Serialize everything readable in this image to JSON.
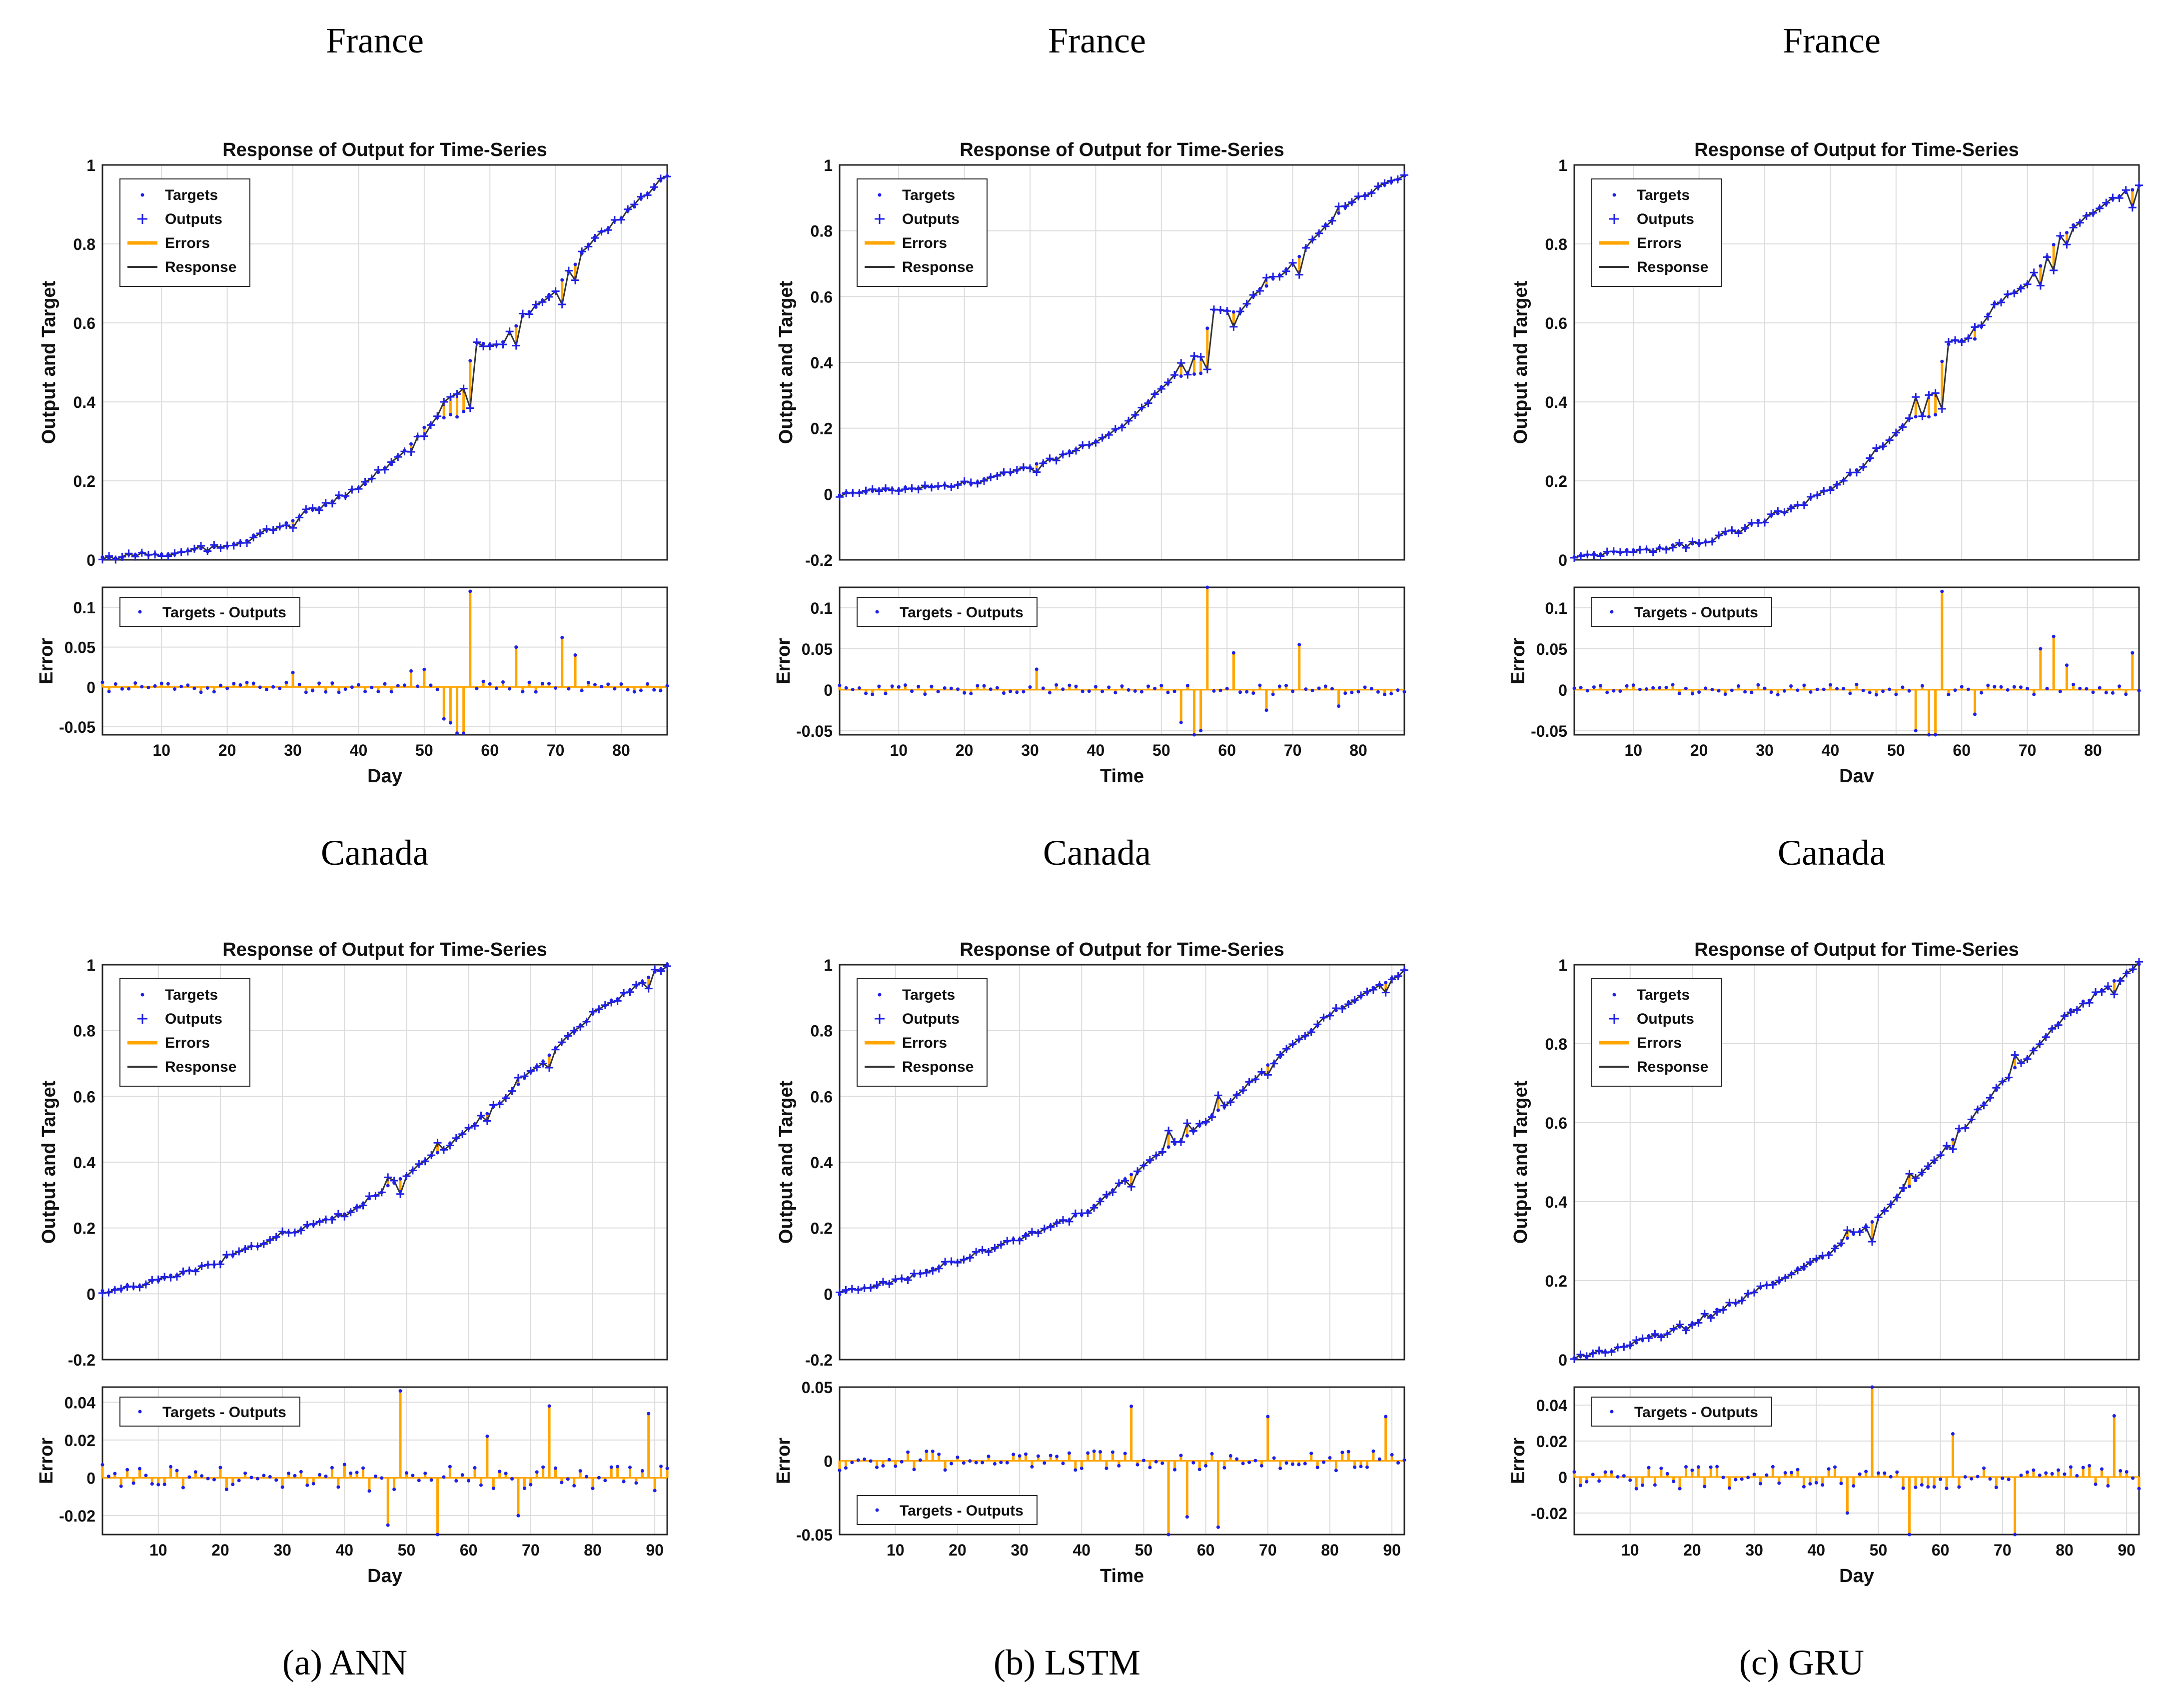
{
  "colors": {
    "axis": "#262626",
    "grid": "#dcdcdc",
    "targets": "#1f1fe6",
    "outputs": "#1f1fe6",
    "errors": "#ffa500",
    "response": "#333333"
  },
  "rows": [
    {
      "country": "France"
    },
    {
      "country": "Canada"
    }
  ],
  "captions": [
    "(a) ANN",
    "(b) LSTM",
    "(c) GRU"
  ],
  "chart_data": [
    {
      "id": "france-ann",
      "type": "line",
      "title": "Response of Output for Time-Series",
      "ylabel": "Output and Target",
      "err_ylabel": "Error",
      "xlabel": "Day",
      "n": 87,
      "xlim": [
        1,
        87
      ],
      "ylim": [
        0,
        1
      ],
      "yticks": [
        "0",
        "0.2",
        "0.4",
        "0.6",
        "0.8",
        "1"
      ],
      "ytick_vals": [
        0,
        0.2,
        0.4,
        0.6,
        0.8,
        1
      ],
      "err_ylim": [
        -0.06,
        0.125
      ],
      "err_ytick_vals": [
        -0.05,
        0,
        0.05,
        0.1
      ],
      "err_yticks": [
        "-0.05",
        "0",
        "0.05",
        "0.1"
      ],
      "xtick_vals": [
        10,
        20,
        30,
        40,
        50,
        60,
        70,
        80
      ],
      "xticks": [
        "10",
        "20",
        "30",
        "40",
        "50",
        "60",
        "70",
        "80"
      ],
      "legend": [
        "Targets",
        "Outputs",
        "Errors",
        "Response"
      ],
      "err_legend": [
        "Targets - Outputs"
      ],
      "err_legend_pos": "top-left",
      "anchors": [
        [
          1,
          0.005
        ],
        [
          20,
          0.03
        ],
        [
          30,
          0.1
        ],
        [
          40,
          0.18
        ],
        [
          45,
          0.24
        ],
        [
          50,
          0.33
        ],
        [
          52,
          0.36
        ],
        [
          56,
          0.37
        ],
        [
          57,
          0.5
        ],
        [
          58,
          0.55
        ],
        [
          62,
          0.55
        ],
        [
          65,
          0.62
        ],
        [
          70,
          0.68
        ],
        [
          75,
          0.8
        ],
        [
          80,
          0.87
        ],
        [
          87,
          0.97
        ]
      ],
      "spikes": [
        [
          53,
          -0.04
        ],
        [
          54,
          -0.045
        ],
        [
          55,
          -0.058
        ],
        [
          56,
          -0.058
        ],
        [
          57,
          0.12
        ],
        [
          64,
          0.05
        ],
        [
          71,
          0.062
        ],
        [
          73,
          0.04
        ],
        [
          30,
          0.018
        ],
        [
          48,
          0.02
        ],
        [
          50,
          0.022
        ]
      ],
      "seed": 11,
      "noise": 0.012
    },
    {
      "id": "france-lstm",
      "type": "line",
      "title": "Response of Output for Time-Series",
      "ylabel": "Output and Target",
      "err_ylabel": "Error",
      "xlabel": "Time",
      "n": 87,
      "xlim": [
        1,
        87
      ],
      "ylim": [
        -0.2,
        1
      ],
      "yticks": [
        "-0.2",
        "0",
        "0.2",
        "0.4",
        "0.6",
        "0.8",
        "1"
      ],
      "ytick_vals": [
        -0.2,
        0,
        0.2,
        0.4,
        0.6,
        0.8,
        1
      ],
      "err_ylim": [
        -0.055,
        0.125
      ],
      "err_ytick_vals": [
        -0.05,
        0,
        0.05,
        0.1
      ],
      "err_yticks": [
        "-0.05",
        "0",
        "0.05",
        "0.1"
      ],
      "xtick_vals": [
        10,
        20,
        30,
        40,
        50,
        60,
        70,
        80
      ],
      "xticks": [
        "10",
        "20",
        "30",
        "40",
        "50",
        "60",
        "70",
        "80"
      ],
      "legend": [
        "Targets",
        "Outputs",
        "Errors",
        "Response"
      ],
      "err_legend": [
        "Targets - Outputs"
      ],
      "err_legend_pos": "top-left",
      "anchors": [
        [
          1,
          0.0
        ],
        [
          20,
          0.03
        ],
        [
          30,
          0.08
        ],
        [
          40,
          0.16
        ],
        [
          45,
          0.22
        ],
        [
          50,
          0.32
        ],
        [
          52,
          0.36
        ],
        [
          56,
          0.37
        ],
        [
          57,
          0.5
        ],
        [
          58,
          0.56
        ],
        [
          62,
          0.55
        ],
        [
          65,
          0.62
        ],
        [
          70,
          0.7
        ],
        [
          75,
          0.82
        ],
        [
          80,
          0.9
        ],
        [
          87,
          0.97
        ]
      ],
      "spikes": [
        [
          53,
          -0.04
        ],
        [
          55,
          -0.055
        ],
        [
          56,
          -0.05
        ],
        [
          57,
          0.125
        ],
        [
          61,
          0.045
        ],
        [
          71,
          0.055
        ],
        [
          66,
          -0.025
        ],
        [
          77,
          -0.02
        ],
        [
          31,
          0.025
        ]
      ],
      "seed": 23,
      "noise": 0.01
    },
    {
      "id": "france-gru",
      "type": "line",
      "title": "Response of Output for Time-Series",
      "ylabel": "Output and Target",
      "err_ylabel": "Error",
      "xlabel": "Dav",
      "n": 87,
      "xlim": [
        1,
        87
      ],
      "ylim": [
        0,
        1
      ],
      "yticks": [
        "0",
        "0.2",
        "0.4",
        "0.6",
        "0.8",
        "1"
      ],
      "ytick_vals": [
        0,
        0.2,
        0.4,
        0.6,
        0.8,
        1
      ],
      "err_ylim": [
        -0.055,
        0.125
      ],
      "err_ytick_vals": [
        -0.05,
        0,
        0.05,
        0.1
      ],
      "err_yticks": [
        "-0.05",
        "0",
        "0.05",
        "0.1"
      ],
      "xtick_vals": [
        10,
        20,
        30,
        40,
        50,
        60,
        70,
        80
      ],
      "xticks": [
        "10",
        "20",
        "30",
        "40",
        "50",
        "60",
        "70",
        "80"
      ],
      "legend": [
        "Targets",
        "Outputs",
        "Errors",
        "Response"
      ],
      "err_legend": [
        "Targets - Outputs"
      ],
      "err_legend_pos": "top-left",
      "anchors": [
        [
          1,
          0.005
        ],
        [
          20,
          0.04
        ],
        [
          30,
          0.1
        ],
        [
          40,
          0.18
        ],
        [
          45,
          0.24
        ],
        [
          50,
          0.32
        ],
        [
          52,
          0.36
        ],
        [
          56,
          0.37
        ],
        [
          57,
          0.5
        ],
        [
          58,
          0.55
        ],
        [
          62,
          0.56
        ],
        [
          65,
          0.65
        ],
        [
          70,
          0.7
        ],
        [
          75,
          0.82
        ],
        [
          80,
          0.88
        ],
        [
          87,
          0.95
        ]
      ],
      "spikes": [
        [
          53,
          -0.05
        ],
        [
          55,
          -0.055
        ],
        [
          56,
          -0.055
        ],
        [
          57,
          0.12
        ],
        [
          72,
          0.05
        ],
        [
          74,
          0.065
        ],
        [
          76,
          0.03
        ],
        [
          62,
          -0.03
        ],
        [
          86,
          0.045
        ]
      ],
      "seed": 37,
      "noise": 0.011
    },
    {
      "id": "canada-ann",
      "type": "line",
      "title": "Response of Output for Time-Series",
      "ylabel": "Output and Target",
      "err_ylabel": "Error",
      "xlabel": "Day",
      "n": 92,
      "xlim": [
        1,
        92
      ],
      "ylim": [
        -0.2,
        1
      ],
      "yticks": [
        "-0.2",
        "0",
        "0.2",
        "0.4",
        "0.6",
        "0.8",
        "1"
      ],
      "ytick_vals": [
        -0.2,
        0,
        0.2,
        0.4,
        0.6,
        0.8,
        1
      ],
      "err_ylim": [
        -0.03,
        0.048
      ],
      "err_ytick_vals": [
        -0.02,
        0,
        0.02,
        0.04
      ],
      "err_yticks": [
        "-0.02",
        "0",
        "0.02",
        "0.04"
      ],
      "xtick_vals": [
        10,
        20,
        30,
        40,
        50,
        60,
        70,
        80,
        90
      ],
      "xticks": [
        "10",
        "20",
        "30",
        "40",
        "50",
        "60",
        "70",
        "80",
        "90"
      ],
      "legend": [
        "Targets",
        "Outputs",
        "Errors",
        "Response"
      ],
      "err_legend": [
        "Targets - Outputs"
      ],
      "err_legend_pos": "top-left",
      "anchors": [
        [
          1,
          0.005
        ],
        [
          10,
          0.04
        ],
        [
          20,
          0.1
        ],
        [
          30,
          0.18
        ],
        [
          40,
          0.24
        ],
        [
          50,
          0.36
        ],
        [
          60,
          0.5
        ],
        [
          70,
          0.67
        ],
        [
          80,
          0.85
        ],
        [
          92,
          1.0
        ]
      ],
      "spikes": [
        [
          49,
          0.046
        ],
        [
          55,
          -0.03
        ],
        [
          73,
          0.038
        ],
        [
          89,
          0.034
        ],
        [
          47,
          -0.025
        ],
        [
          63,
          0.022
        ],
        [
          68,
          -0.02
        ]
      ],
      "seed": 41,
      "noise": 0.012
    },
    {
      "id": "canada-lstm",
      "type": "line",
      "title": "Response of Output for Time-Series",
      "ylabel": "Output and Target",
      "err_ylabel": "Error",
      "xlabel": "Time",
      "n": 92,
      "xlim": [
        1,
        92
      ],
      "ylim": [
        -0.2,
        1
      ],
      "yticks": [
        "-0.2",
        "0",
        "0.2",
        "0.4",
        "0.6",
        "0.8",
        "1"
      ],
      "ytick_vals": [
        -0.2,
        0,
        0.2,
        0.4,
        0.6,
        0.8,
        1
      ],
      "err_ylim": [
        -0.05,
        0.05
      ],
      "err_ytick_vals": [
        -0.05,
        0,
        0.05
      ],
      "err_yticks": [
        "-0.05",
        "0",
        "0.05"
      ],
      "xtick_vals": [
        10,
        20,
        30,
        40,
        50,
        60,
        70,
        80,
        90
      ],
      "xticks": [
        "10",
        "20",
        "30",
        "40",
        "50",
        "60",
        "70",
        "80",
        "90"
      ],
      "legend": [
        "Targets",
        "Outputs",
        "Errors",
        "Response"
      ],
      "err_legend": [
        "Targets - Outputs"
      ],
      "err_legend_pos": "bottom-left",
      "anchors": [
        [
          1,
          0.0
        ],
        [
          10,
          0.04
        ],
        [
          20,
          0.1
        ],
        [
          30,
          0.17
        ],
        [
          40,
          0.24
        ],
        [
          50,
          0.39
        ],
        [
          60,
          0.52
        ],
        [
          70,
          0.69
        ],
        [
          80,
          0.85
        ],
        [
          92,
          0.98
        ]
      ],
      "spikes": [
        [
          48,
          0.037
        ],
        [
          54,
          -0.05
        ],
        [
          57,
          -0.038
        ],
        [
          62,
          -0.045
        ],
        [
          70,
          0.03
        ],
        [
          89,
          0.03
        ]
      ],
      "seed": 53,
      "noise": 0.011
    },
    {
      "id": "canada-gru",
      "type": "line",
      "title": "Response of Output for Time-Series",
      "ylabel": "Output and Target",
      "err_ylabel": "Error",
      "xlabel": "Day",
      "n": 92,
      "xlim": [
        1,
        92
      ],
      "ylim": [
        0,
        1
      ],
      "yticks": [
        "0",
        "0.2",
        "0.4",
        "0.6",
        "0.8",
        "1"
      ],
      "ytick_vals": [
        0,
        0.2,
        0.4,
        0.6,
        0.8,
        1
      ],
      "err_ylim": [
        -0.032,
        0.05
      ],
      "err_ytick_vals": [
        -0.02,
        0,
        0.02,
        0.04
      ],
      "err_yticks": [
        "-0.02",
        "0",
        "0.02",
        "0.04"
      ],
      "xtick_vals": [
        10,
        20,
        30,
        40,
        50,
        60,
        70,
        80,
        90
      ],
      "xticks": [
        "10",
        "20",
        "30",
        "40",
        "50",
        "60",
        "70",
        "80",
        "90"
      ],
      "legend": [
        "Targets",
        "Outputs",
        "Errors",
        "Response"
      ],
      "err_legend": [
        "Targets - Outputs"
      ],
      "err_legend_pos": "top-left",
      "anchors": [
        [
          1,
          0.0
        ],
        [
          10,
          0.04
        ],
        [
          20,
          0.09
        ],
        [
          30,
          0.17
        ],
        [
          40,
          0.25
        ],
        [
          50,
          0.36
        ],
        [
          60,
          0.52
        ],
        [
          70,
          0.7
        ],
        [
          80,
          0.87
        ],
        [
          92,
          1.0
        ]
      ],
      "spikes": [
        [
          49,
          0.05
        ],
        [
          55,
          -0.032
        ],
        [
          72,
          -0.032
        ],
        [
          88,
          0.034
        ],
        [
          45,
          -0.02
        ],
        [
          62,
          0.024
        ]
      ],
      "seed": 67,
      "noise": 0.011
    }
  ]
}
